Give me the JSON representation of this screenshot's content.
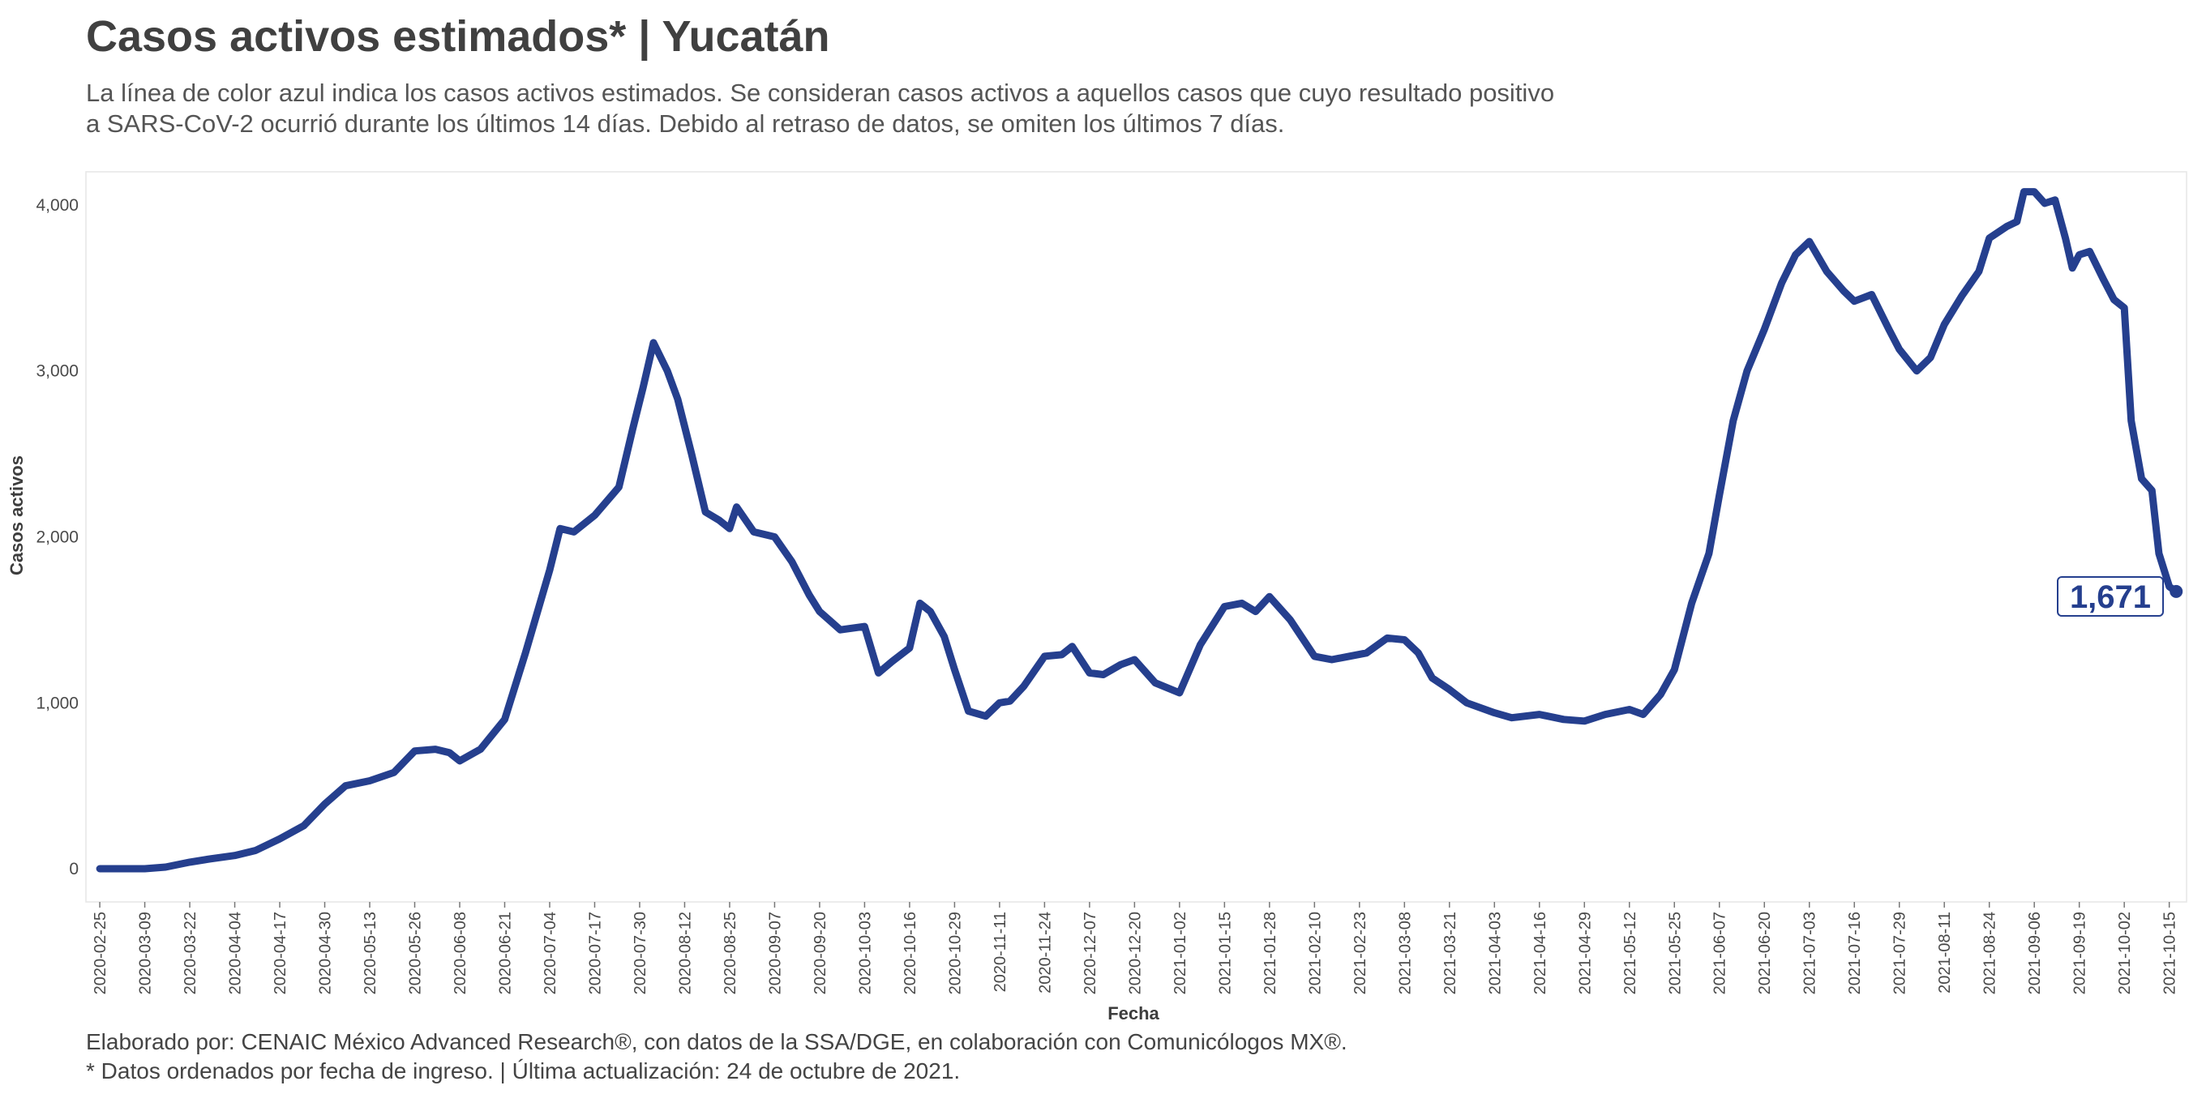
{
  "chart_data": {
    "type": "line",
    "title": "Casos activos estimados* | Yucatán",
    "subtitle_line1": "La línea de color azul indica los casos activos estimados. Se consideran casos activos a aquellos casos que cuyo resultado positivo",
    "subtitle_line2": "a SARS-CoV-2 ocurrió durante los últimos 14 días. Debido al retraso de datos, se omiten los últimos 7 días.",
    "xlabel": "Fecha",
    "ylabel": "Casos activos",
    "ylim": [
      -200,
      4200
    ],
    "xlim": [
      "2020-02-21",
      "2021-10-20"
    ],
    "y_ticks": [
      0,
      1000,
      2000,
      3000,
      4000
    ],
    "y_tick_labels": [
      "0",
      "1,000",
      "2,000",
      "3,000",
      "4,000"
    ],
    "x_tick_labels": [
      "2020-02-25",
      "2020-03-09",
      "2020-03-22",
      "2020-04-04",
      "2020-04-17",
      "2020-04-30",
      "2020-05-13",
      "2020-05-26",
      "2020-06-08",
      "2020-06-21",
      "2020-07-04",
      "2020-07-17",
      "2020-07-30",
      "2020-08-12",
      "2020-08-25",
      "2020-09-07",
      "2020-09-20",
      "2020-10-03",
      "2020-10-16",
      "2020-10-29",
      "2020-11-11",
      "2020-11-24",
      "2020-12-07",
      "2020-12-20",
      "2021-01-02",
      "2021-01-15",
      "2021-01-28",
      "2021-02-10",
      "2021-02-23",
      "2021-03-08",
      "2021-03-21",
      "2021-04-03",
      "2021-04-16",
      "2021-04-29",
      "2021-05-12",
      "2021-05-25",
      "2021-06-07",
      "2021-06-20",
      "2021-07-03",
      "2021-07-16",
      "2021-07-29",
      "2021-08-11",
      "2021-08-24",
      "2021-09-06",
      "2021-09-19",
      "2021-10-02",
      "2021-10-15"
    ],
    "grid": false,
    "color": "#253f8e",
    "end_label": "1,671",
    "series": [
      {
        "x": [
          "2020-02-25",
          "2020-03-02",
          "2020-03-09",
          "2020-03-15",
          "2020-03-22",
          "2020-03-28",
          "2020-04-04",
          "2020-04-10",
          "2020-04-17",
          "2020-04-24",
          "2020-04-30",
          "2020-05-06",
          "2020-05-13",
          "2020-05-20",
          "2020-05-26",
          "2020-06-01",
          "2020-06-05",
          "2020-06-08",
          "2020-06-14",
          "2020-06-21",
          "2020-06-27",
          "2020-07-04",
          "2020-07-07",
          "2020-07-11",
          "2020-07-17",
          "2020-07-24",
          "2020-07-28",
          "2020-07-31",
          "2020-08-03",
          "2020-08-07",
          "2020-08-10",
          "2020-08-14",
          "2020-08-18",
          "2020-08-22",
          "2020-08-25",
          "2020-08-27",
          "2020-09-01",
          "2020-09-07",
          "2020-09-12",
          "2020-09-17",
          "2020-09-20",
          "2020-09-26",
          "2020-10-03",
          "2020-10-07",
          "2020-10-11",
          "2020-10-16",
          "2020-10-19",
          "2020-10-22",
          "2020-10-26",
          "2020-10-29",
          "2020-11-02",
          "2020-11-07",
          "2020-11-11",
          "2020-11-14",
          "2020-11-18",
          "2020-11-24",
          "2020-11-29",
          "2020-12-02",
          "2020-12-07",
          "2020-12-11",
          "2020-12-16",
          "2020-12-20",
          "2020-12-26",
          "2021-01-02",
          "2021-01-08",
          "2021-01-15",
          "2021-01-20",
          "2021-01-24",
          "2021-01-28",
          "2021-02-03",
          "2021-02-10",
          "2021-02-15",
          "2021-02-20",
          "2021-02-25",
          "2021-03-03",
          "2021-03-08",
          "2021-03-12",
          "2021-03-16",
          "2021-03-21",
          "2021-03-26",
          "2021-04-03",
          "2021-04-08",
          "2021-04-16",
          "2021-04-23",
          "2021-04-29",
          "2021-05-05",
          "2021-05-12",
          "2021-05-16",
          "2021-05-21",
          "2021-05-25",
          "2021-05-30",
          "2021-06-04",
          "2021-06-07",
          "2021-06-11",
          "2021-06-15",
          "2021-06-20",
          "2021-06-25",
          "2021-06-29",
          "2021-07-03",
          "2021-07-08",
          "2021-07-13",
          "2021-07-16",
          "2021-07-21",
          "2021-07-26",
          "2021-07-29",
          "2021-08-03",
          "2021-08-07",
          "2021-08-11",
          "2021-08-16",
          "2021-08-21",
          "2021-08-24",
          "2021-08-29",
          "2021-09-01",
          "2021-09-03",
          "2021-09-06",
          "2021-09-09",
          "2021-09-12",
          "2021-09-15",
          "2021-09-17",
          "2021-09-19",
          "2021-09-22",
          "2021-09-26",
          "2021-09-29",
          "2021-10-02",
          "2021-10-04",
          "2021-10-07",
          "2021-10-10",
          "2021-10-12",
          "2021-10-15",
          "2021-10-17"
        ],
        "y": [
          0,
          0,
          0,
          10,
          40,
          60,
          80,
          110,
          180,
          260,
          390,
          500,
          530,
          580,
          710,
          720,
          700,
          650,
          720,
          900,
          1300,
          1800,
          2050,
          2030,
          2130,
          2300,
          2650,
          2900,
          3170,
          3000,
          2830,
          2500,
          2150,
          2100,
          2050,
          2180,
          2030,
          2000,
          1850,
          1650,
          1550,
          1440,
          1460,
          1180,
          1250,
          1330,
          1600,
          1550,
          1400,
          1200,
          950,
          920,
          1000,
          1010,
          1100,
          1280,
          1290,
          1340,
          1180,
          1170,
          1230,
          1260,
          1120,
          1060,
          1350,
          1580,
          1600,
          1550,
          1640,
          1500,
          1280,
          1260,
          1280,
          1300,
          1390,
          1380,
          1300,
          1150,
          1080,
          1000,
          940,
          910,
          930,
          900,
          890,
          930,
          960,
          930,
          1050,
          1200,
          1600,
          1900,
          2250,
          2700,
          3000,
          3250,
          3530,
          3700,
          3780,
          3600,
          3480,
          3420,
          3460,
          3250,
          3130,
          3000,
          3080,
          3280,
          3450,
          3600,
          3800,
          3870,
          3900,
          4080,
          4080,
          4010,
          4030,
          3800,
          3620,
          3700,
          3720,
          3550,
          3430,
          3380,
          2700,
          2350,
          2280,
          1900,
          1700,
          1671
        ]
      }
    ]
  },
  "caption": {
    "line1": "Elaborado por: CENAIC México Advanced Research®, con datos de la SSA/DGE, en colaboración con Comunicólogos MX®.",
    "line2": "* Datos ordenados por fecha de ingreso. | Última actualización: 24 de octubre de 2021."
  }
}
